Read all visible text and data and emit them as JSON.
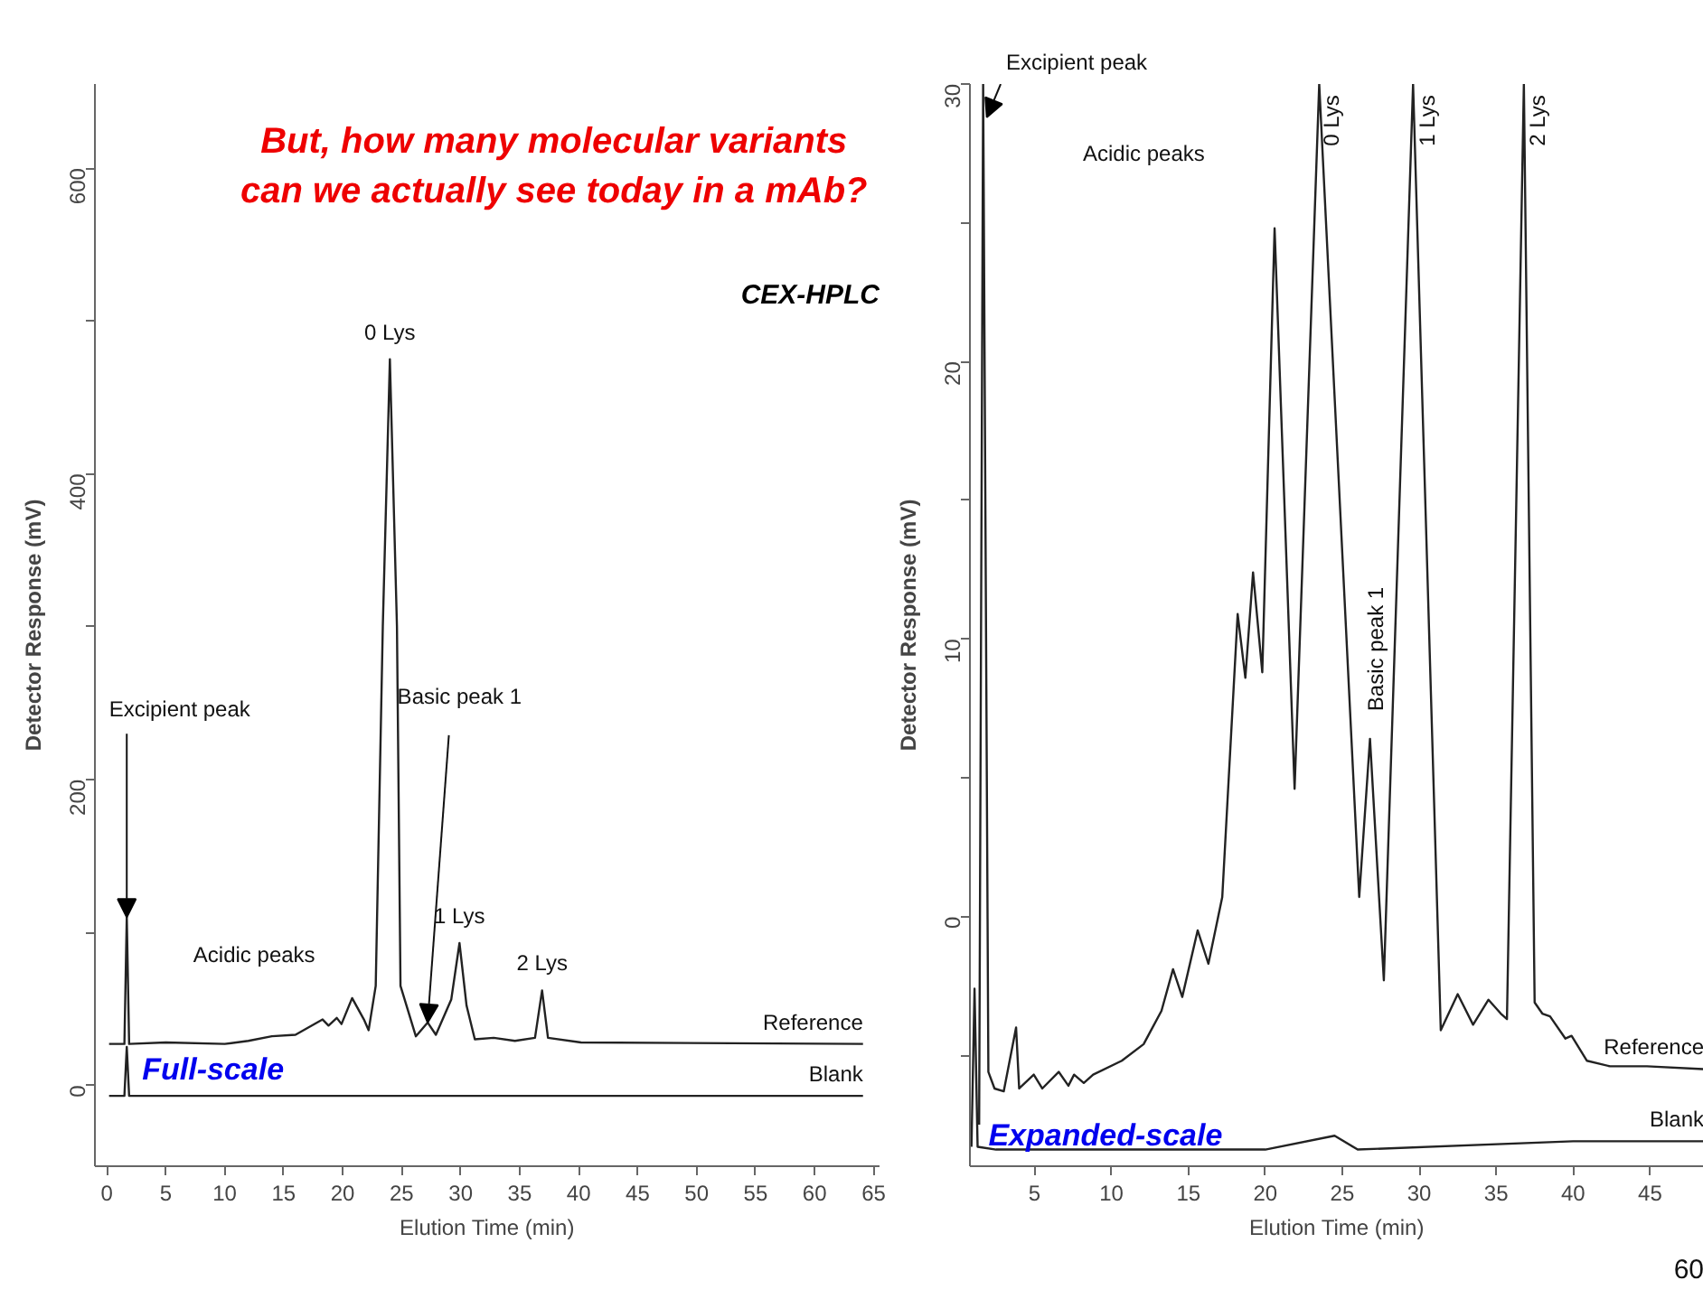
{
  "chart_data": [
    {
      "type": "line",
      "title": "But, how many molecular variants can we actually see today in a mAb?",
      "xlabel": "Elution Time (min)",
      "ylabel": "Detector Response (mV)",
      "xlim": [
        -1,
        65.5
      ],
      "ylim": [
        -53,
        655
      ],
      "xticks": [
        0,
        5,
        10,
        15,
        20,
        25,
        30,
        35,
        40,
        45,
        50,
        55,
        60,
        65
      ],
      "yticks": [
        0,
        {
          "value": 100,
          "label": null
        },
        200,
        {
          "value": 300,
          "label": null
        },
        400,
        {
          "value": 500,
          "label": null
        },
        600
      ],
      "grid": false,
      "annotations": [
        "CEX-HPLC",
        {
          "text": "Excipient peak",
          "x": 1.7,
          "y": 110
        },
        "Acidic peaks",
        {
          "text": "0 Lys",
          "x": 24.0,
          "y": 475
        },
        {
          "text": "Basic peak 1",
          "x": 27.2,
          "y": 41
        },
        {
          "text": "1 Lys",
          "x": 29.9,
          "y": 93
        },
        {
          "text": "2 Lys",
          "x": 36.9,
          "y": 62
        },
        "Full-scale"
      ],
      "series": [
        {
          "name": "Reference",
          "color": "#222222",
          "x": [
            0.2,
            1.5,
            1.7,
            1.9,
            5,
            10,
            12,
            14,
            16,
            18.3,
            18.8,
            19.5,
            19.9,
            20.8,
            21.8,
            22.2,
            22.8,
            23.4,
            24.0,
            24.6,
            24.9,
            26.2,
            27.2,
            27.9,
            29.2,
            29.9,
            30.5,
            31.2,
            32.8,
            34.6,
            36.3,
            36.9,
            37.4,
            40.2,
            64.1
          ],
          "values": [
            27,
            27,
            110,
            27,
            28,
            27,
            29,
            32,
            33,
            43,
            39,
            44,
            40,
            57,
            43,
            36,
            65,
            300,
            475,
            300,
            65,
            32,
            41,
            33,
            56,
            93,
            52,
            30,
            31,
            29,
            31,
            62,
            31,
            28,
            27
          ]
        },
        {
          "name": "Blank",
          "color": "#222222",
          "x": [
            0.2,
            1.5,
            1.7,
            1.9,
            64.1
          ],
          "values": [
            -7,
            -7,
            25,
            -7,
            -7
          ]
        }
      ]
    },
    {
      "type": "line",
      "xlabel": "Elution Time (min)",
      "ylabel": "Detector Response (mV)",
      "xlim": [
        0.8,
        48.5
      ],
      "ylim": [
        -9,
        30
      ],
      "xticks": [
        5,
        10,
        15,
        20,
        25,
        30,
        35,
        40,
        45
      ],
      "yticks": [
        {
          "value": -5,
          "label": null
        },
        0,
        {
          "value": 5,
          "label": null
        },
        10,
        {
          "value": 15,
          "label": null
        },
        20,
        {
          "value": 25,
          "label": null
        },
        30
      ],
      "grid": false,
      "annotations": [
        "Excipient peak",
        "Acidic peaks",
        {
          "text": "0 Lys",
          "x": 23.5,
          "y": 30
        },
        {
          "text": "Basic peak 1",
          "x": 26.8,
          "y": 6.4
        },
        {
          "text": "1 Lys",
          "x": 29.6,
          "y": 30
        },
        {
          "text": "2 Lys",
          "x": 36.8,
          "y": 30
        },
        "Expanded-scale",
        "60"
      ],
      "series": [
        {
          "name": "Reference",
          "color": "#222222",
          "x": [
            1.4,
            1.66,
            2.0,
            2.4,
            3.0,
            3.8,
            4.0,
            4.95,
            5.5,
            6.57,
            7.2,
            7.57,
            8.2,
            8.81,
            10.67,
            12.09,
            13.25,
            14.0,
            14.6,
            15.6,
            16.3,
            17.2,
            18.2,
            18.7,
            19.2,
            19.8,
            20.6,
            21.9,
            23.5,
            26.1,
            26.8,
            27.7,
            29.6,
            31.4,
            32.5,
            33.5,
            34.5,
            35.3,
            35.7,
            36.8,
            37.5,
            38.0,
            38.5,
            39.5,
            39.9,
            40.9,
            42.4,
            44.8,
            48.5
          ],
          "values": [
            -7.5,
            30,
            -5.6,
            -6.2,
            -6.3,
            -4.0,
            -6.2,
            -5.7,
            -6.2,
            -5.6,
            -6.1,
            -5.7,
            -6.0,
            -5.7,
            -5.2,
            -4.6,
            -3.4,
            -1.9,
            -2.9,
            -0.5,
            -1.7,
            0.7,
            10.9,
            8.6,
            12.4,
            8.8,
            24.8,
            4.6,
            30,
            0.7,
            6.4,
            -2.3,
            30,
            -4.1,
            -2.8,
            -3.9,
            -3.0,
            -3.5,
            -3.7,
            30,
            -3.1,
            -3.5,
            -3.6,
            -4.4,
            -4.3,
            -5.2,
            -5.4,
            -5.4,
            -5.5
          ]
        },
        {
          "name": "Blank",
          "color": "#222222",
          "x": [
            0.9,
            1.1,
            1.3,
            2.5,
            20,
            24.5,
            26,
            40,
            48.5
          ],
          "values": [
            -8.3,
            -2.6,
            -8.3,
            -8.4,
            -8.4,
            -7.9,
            -8.4,
            -8.1,
            -8.1
          ]
        }
      ]
    }
  ]
}
